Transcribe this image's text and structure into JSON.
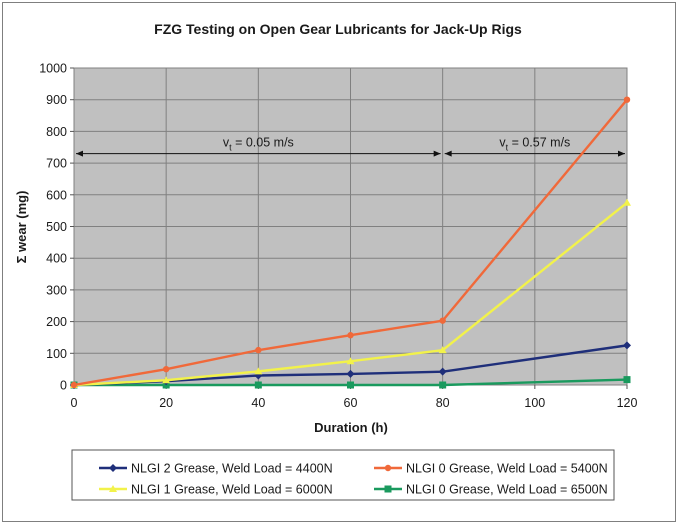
{
  "chart_data": {
    "type": "line",
    "title": "FZG Testing on Open Gear Lubricants for Jack-Up Rigs",
    "xlabel": "Duration (h)",
    "ylabel": "Σ wear (mg)",
    "xlim": [
      0,
      120
    ],
    "ylim": [
      0,
      1000
    ],
    "x_ticks": [
      0,
      20,
      40,
      60,
      80,
      100,
      120
    ],
    "y_ticks": [
      0,
      100,
      200,
      300,
      400,
      500,
      600,
      700,
      800,
      900,
      1000
    ],
    "x": [
      0,
      20,
      40,
      60,
      80,
      120
    ],
    "grid": true,
    "legend_position": "bottom",
    "plot_background": "#c0c0c0",
    "series": [
      {
        "name": "NLGI 2 Grease, Weld Load = 4400N",
        "color": "#1f2f7a",
        "marker": "diamond",
        "values": [
          0,
          12,
          30,
          35,
          42,
          125
        ]
      },
      {
        "name": "NLGI 0 Grease, Weld Load = 5400N",
        "color": "#f0693a",
        "marker": "circle",
        "values": [
          0,
          50,
          110,
          157,
          203,
          900
        ]
      },
      {
        "name": "NLGI 1 Grease, Weld Load = 6000N",
        "color": "#f2f24a",
        "marker": "triangle",
        "values": [
          0,
          15,
          43,
          75,
          110,
          575
        ]
      },
      {
        "name": "NLGI 0 Grease, Weld Load = 6500N",
        "color": "#1a9a5e",
        "marker": "square",
        "values": [
          0,
          0,
          0,
          0,
          0,
          17
        ]
      }
    ],
    "annotations": [
      {
        "text_main": "v",
        "text_sub": "t",
        "text_rest": " = 0.05 m/s",
        "x_from": 0,
        "x_to": 80,
        "y": 730
      },
      {
        "text_main": "v",
        "text_sub": "t",
        "text_rest": " = 0.57 m/s",
        "x_from": 80,
        "x_to": 120,
        "y": 730
      }
    ]
  }
}
